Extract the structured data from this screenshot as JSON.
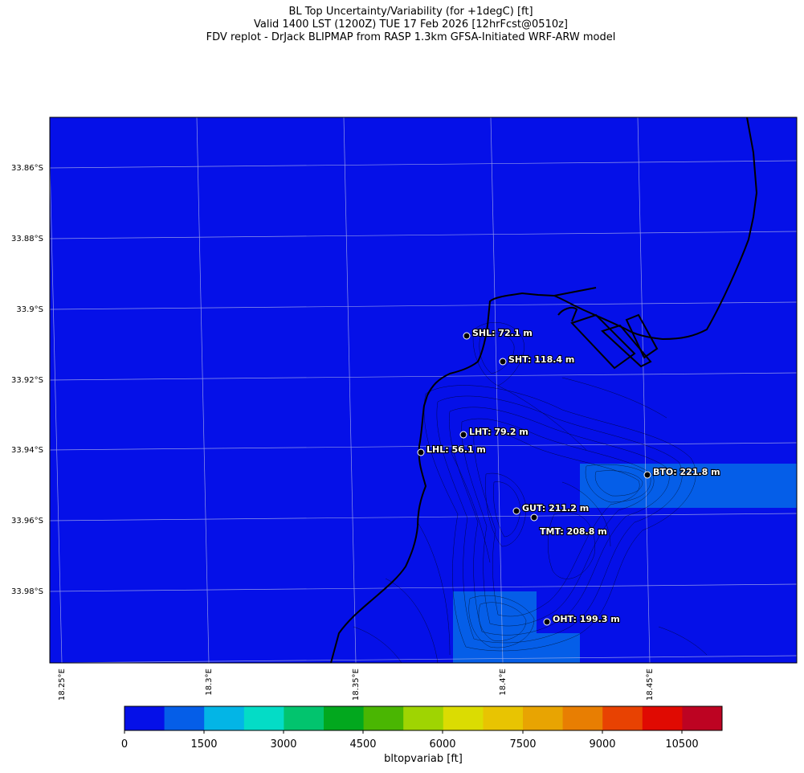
{
  "title": {
    "line1": "BL Top Uncertainty/Variability (for +1degC) [ft]",
    "line2": "Valid 1400 LST (1200Z) TUE 17 Feb 2026 [12hrFcst@0510z]",
    "line3": "FDV replot - DrJack BLIPMAP from RASP 1.3km GFSA-Initiated WRF-ARW model"
  },
  "map": {
    "background_color": "#0510e8",
    "lat_labels": [
      "33.86°S",
      "33.88°S",
      "33.9°S",
      "33.92°S",
      "33.94°S",
      "33.96°S",
      "33.98°S"
    ],
    "lon_labels": [
      "18.25°E",
      "18.3°E",
      "18.35°E",
      "18.4°E",
      "18.45°E"
    ],
    "stations": [
      {
        "label": "SHL: 72.1 m"
      },
      {
        "label": "SHT: 118.4 m"
      },
      {
        "label": "LHT: 79.2 m"
      },
      {
        "label": "LHL: 56.1 m"
      },
      {
        "label": "BTO: 221.8 m"
      },
      {
        "label": "GUT: 211.2 m"
      },
      {
        "label": "TMT: 208.8 m"
      },
      {
        "label": "OHT: 199.3 m"
      }
    ]
  },
  "colorbar": {
    "label": "bltopvariab [ft]",
    "ticks": [
      "0",
      "1500",
      "3000",
      "4500",
      "6000",
      "7500",
      "9000",
      "10500"
    ],
    "colors": [
      "#0510e8",
      "#055ee8",
      "#03b5e6",
      "#04dcc6",
      "#02c46e",
      "#02a81e",
      "#4ab602",
      "#9fd402",
      "#dbdc02",
      "#e8c402",
      "#e8a402",
      "#e87e02",
      "#e84202",
      "#e00a02",
      "#bd0322"
    ]
  }
}
